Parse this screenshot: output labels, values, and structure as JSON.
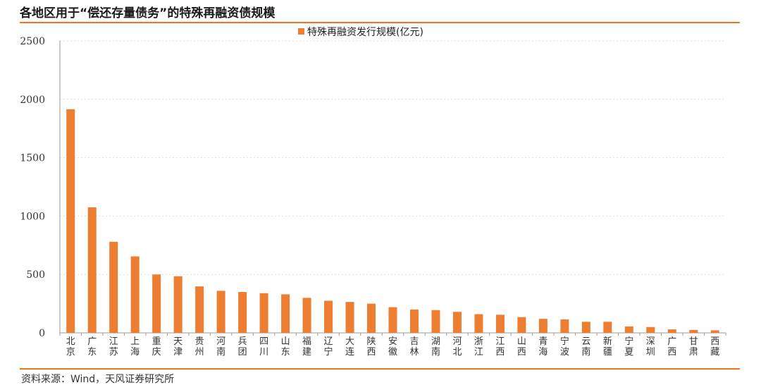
{
  "header": {
    "title": "各地区用于“偿还存量债务”的特殊再融资债规模"
  },
  "footer": {
    "source": "资料来源：Wind，天风证券研究所"
  },
  "colors": {
    "bar": "#ED7D31",
    "accent_rule": "#E87722",
    "axis": "#9a9a9a",
    "grid": "#dddddd"
  },
  "chart_data": {
    "type": "bar",
    "title": "各地区用于“偿还存量债务”的特殊再融资债规模",
    "xlabel": "",
    "ylabel": "",
    "ylim": [
      0,
      2500
    ],
    "yticks": [
      0,
      500,
      1000,
      1500,
      2000,
      2500
    ],
    "grid": true,
    "legend_position": "top-center",
    "categories": [
      "北京",
      "广东",
      "江苏",
      "上海",
      "重庆",
      "天津",
      "贵州",
      "河南",
      "兵团",
      "四川",
      "山东",
      "福建",
      "辽宁",
      "大连",
      "陕西",
      "安徽",
      "吉林",
      "湖南",
      "河北",
      "浙江",
      "江西",
      "山西",
      "青海",
      "宁波",
      "云南",
      "新疆",
      "宁夏",
      "深圳",
      "广西",
      "甘肃",
      "西藏"
    ],
    "series": [
      {
        "name": "特殊再融资发行规模(亿元)",
        "values": [
          1915,
          1075,
          780,
          655,
          500,
          485,
          398,
          360,
          350,
          340,
          330,
          300,
          275,
          265,
          250,
          220,
          200,
          195,
          180,
          160,
          155,
          135,
          120,
          115,
          95,
          95,
          55,
          50,
          30,
          25,
          22
        ]
      }
    ]
  }
}
